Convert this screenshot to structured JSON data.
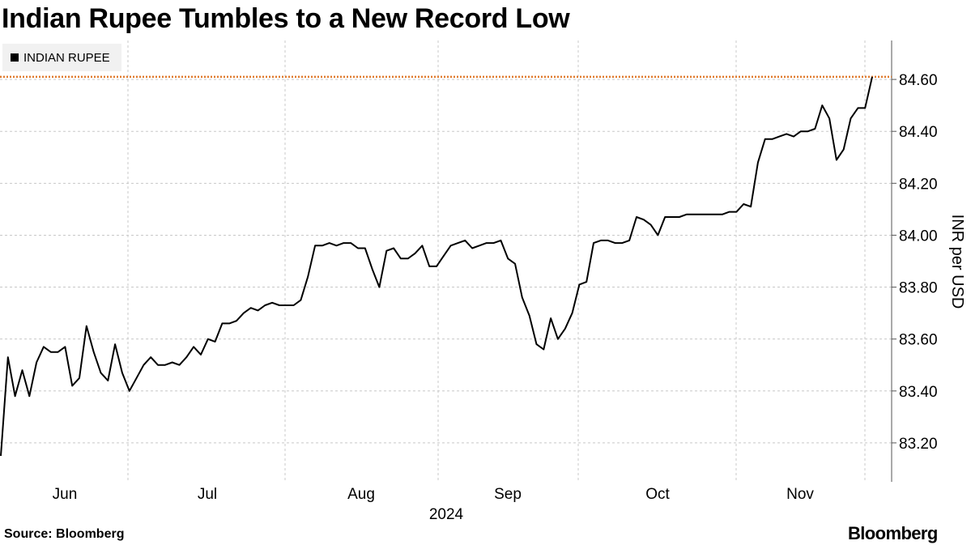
{
  "title": "Indian Rupee Tumbles to a New Record Low",
  "legend": {
    "label": "INDIAN RUPEE"
  },
  "source": "Source: Bloomberg",
  "brand": "Bloomberg",
  "colors": {
    "line": "#000000",
    "reference": "#e07b2e",
    "grid": "#c8c8c8",
    "legend_bg": "#f1f1f1"
  },
  "chart_data": {
    "type": "line",
    "title": "Indian Rupee Tumbles to a New Record Low",
    "ylabel": "INR per USD",
    "ylim": [
      83.05,
      84.75
    ],
    "y_ticks": [
      "83.20",
      "83.40",
      "83.60",
      "83.80",
      "84.00",
      "84.20",
      "84.40",
      "84.60"
    ],
    "y_tick_values": [
      83.2,
      83.4,
      83.6,
      83.8,
      84.0,
      84.2,
      84.4,
      84.6
    ],
    "x_month_labels": [
      "Jun",
      "Jul",
      "Aug",
      "Sep",
      "Oct",
      "Nov"
    ],
    "x_year_label": "2024",
    "y_axis_side": "right",
    "grid": true,
    "legend_position": "top-left",
    "reference_line": {
      "y": 84.61,
      "style": "dotted"
    },
    "series": [
      {
        "name": "INDIAN RUPEE",
        "values": [
          83.15,
          83.53,
          83.38,
          83.48,
          83.38,
          83.51,
          83.57,
          83.55,
          83.55,
          83.57,
          83.42,
          83.45,
          83.65,
          83.55,
          83.47,
          83.44,
          83.58,
          83.47,
          83.4,
          83.45,
          83.5,
          83.53,
          83.5,
          83.5,
          83.51,
          83.5,
          83.53,
          83.57,
          83.54,
          83.6,
          83.59,
          83.66,
          83.66,
          83.67,
          83.7,
          83.72,
          83.71,
          83.73,
          83.74,
          83.73,
          83.73,
          83.73,
          83.75,
          83.84,
          83.96,
          83.96,
          83.97,
          83.96,
          83.97,
          83.97,
          83.95,
          83.95,
          83.87,
          83.8,
          83.94,
          83.95,
          83.91,
          83.91,
          83.93,
          83.96,
          83.88,
          83.88,
          83.92,
          83.96,
          83.97,
          83.98,
          83.95,
          83.96,
          83.97,
          83.97,
          83.98,
          83.91,
          83.89,
          83.76,
          83.69,
          83.58,
          83.56,
          83.68,
          83.6,
          83.64,
          83.7,
          83.81,
          83.82,
          83.97,
          83.98,
          83.98,
          83.97,
          83.97,
          83.98,
          84.07,
          84.06,
          84.04,
          84.0,
          84.07,
          84.07,
          84.07,
          84.08,
          84.08,
          84.08,
          84.08,
          84.08,
          84.08,
          84.09,
          84.09,
          84.12,
          84.11,
          84.28,
          84.37,
          84.37,
          84.38,
          84.39,
          84.38,
          84.4,
          84.4,
          84.41,
          84.5,
          84.45,
          84.29,
          84.33,
          84.45,
          84.49,
          84.49,
          84.61
        ]
      }
    ]
  }
}
